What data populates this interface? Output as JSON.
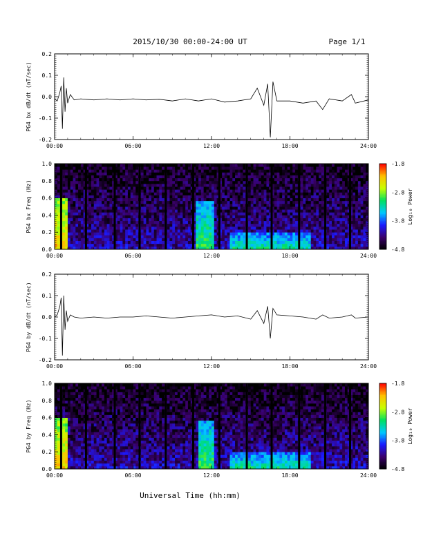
{
  "header": {
    "title": "2015/10/30  00:00-24:00 UT",
    "page": "Page 1/1"
  },
  "footer": {
    "xlabel": "Universal Time (hh:mm)"
  },
  "colorbar": {
    "label": "Log₁₀ Power",
    "ticks": [
      "-1.8",
      "-2.8",
      "-3.8",
      "-4.8"
    ],
    "range": [
      -4.8,
      -1.8
    ],
    "colormap": [
      "#000000",
      "#3a006a",
      "#1a1aff",
      "#00c8ff",
      "#00e060",
      "#c8ff00",
      "#ffc000",
      "#ff0000"
    ]
  },
  "x_ticks": [
    "00:00",
    "06:00",
    "12:00",
    "18:00",
    "24:00"
  ],
  "chart_data": [
    {
      "type": "line",
      "ylabel": "PG4 bx dB/dt (nT/sec)",
      "xlim": [
        0,
        24
      ],
      "ylim": [
        -0.2,
        0.2
      ],
      "y_ticks": [
        "0.2",
        "0.1",
        "0.0",
        "-0.1",
        "-0.2"
      ],
      "x": [
        0.0,
        0.2,
        0.4,
        0.5,
        0.6,
        0.7,
        0.8,
        0.9,
        1.0,
        1.2,
        1.5,
        2.0,
        3.0,
        4.0,
        5.0,
        6.0,
        7.0,
        8.0,
        9.0,
        10.0,
        11.0,
        12.0,
        13.0,
        14.0,
        15.0,
        15.5,
        16.0,
        16.3,
        16.5,
        16.7,
        17.0,
        18.0,
        19.0,
        20.0,
        20.5,
        21.0,
        22.0,
        22.7,
        23.0,
        24.0
      ],
      "values": [
        -0.01,
        -0.02,
        0.02,
        0.05,
        -0.15,
        0.09,
        -0.07,
        0.04,
        -0.03,
        0.01,
        -0.015,
        -0.01,
        -0.015,
        -0.01,
        -0.015,
        -0.01,
        -0.015,
        -0.012,
        -0.02,
        -0.01,
        -0.02,
        -0.01,
        -0.025,
        -0.02,
        -0.01,
        0.04,
        -0.04,
        0.06,
        -0.19,
        0.07,
        -0.02,
        -0.02,
        -0.03,
        -0.02,
        -0.06,
        -0.01,
        -0.02,
        0.01,
        -0.03,
        -0.015
      ]
    },
    {
      "type": "heatmap",
      "ylabel": "PG4 bx Freq (Hz)",
      "xlim": [
        0,
        24
      ],
      "ylim": [
        0.0,
        1.0
      ],
      "y_ticks": [
        "1.0",
        "0.8",
        "0.6",
        "0.4",
        "0.2",
        "0.0"
      ],
      "gaps_hours": [
        0.5,
        2.4,
        4.6,
        6.5,
        8.5,
        10.6,
        12.6,
        14.7,
        16.6,
        18.7,
        20.7,
        22.6
      ],
      "features": [
        {
          "t_start": 0.0,
          "t_end": 1.0,
          "f_max": 0.6,
          "log_power": -2.3
        },
        {
          "t_start": 10.9,
          "t_end": 12.2,
          "f_max": 0.55,
          "log_power": -3.0
        },
        {
          "t_start": 13.5,
          "t_end": 19.5,
          "f_max": 0.2,
          "log_power": -3.2
        }
      ],
      "background_log_power": -4.2
    },
    {
      "type": "line",
      "ylabel": "PG4 by dB/dt (nT/sec)",
      "xlim": [
        0,
        24
      ],
      "ylim": [
        -0.2,
        0.2
      ],
      "y_ticks": [
        "0.2",
        "0.1",
        "0.0",
        "-0.1",
        "-0.2"
      ],
      "x": [
        0.0,
        0.2,
        0.4,
        0.5,
        0.6,
        0.7,
        0.8,
        0.9,
        1.0,
        1.2,
        1.5,
        2.0,
        3.0,
        4.0,
        5.0,
        6.0,
        7.0,
        8.0,
        9.0,
        10.0,
        11.0,
        12.0,
        13.0,
        14.0,
        15.0,
        15.5,
        16.0,
        16.3,
        16.5,
        16.7,
        17.0,
        18.0,
        19.0,
        20.0,
        20.5,
        21.0,
        22.0,
        22.7,
        23.0,
        24.0
      ],
      "values": [
        0.0,
        0.01,
        0.05,
        0.09,
        -0.18,
        0.1,
        -0.06,
        0.03,
        -0.02,
        0.01,
        0.0,
        -0.005,
        0.0,
        -0.005,
        0.0,
        0.0,
        0.005,
        0.0,
        -0.005,
        0.0,
        0.005,
        0.01,
        0.0,
        0.005,
        -0.01,
        0.03,
        -0.03,
        0.05,
        -0.1,
        0.04,
        0.01,
        0.005,
        0.0,
        -0.01,
        0.01,
        -0.005,
        0.0,
        0.01,
        -0.005,
        0.0
      ]
    },
    {
      "type": "heatmap",
      "ylabel": "PG4 by Freq (Hz)",
      "xlim": [
        0,
        24
      ],
      "ylim": [
        0.0,
        1.0
      ],
      "y_ticks": [
        "1.0",
        "0.8",
        "0.6",
        "0.4",
        "0.2",
        "0.0"
      ],
      "gaps_hours": [
        0.5,
        2.4,
        4.6,
        6.5,
        8.5,
        10.6,
        12.6,
        14.7,
        16.6,
        18.7,
        20.7,
        22.6
      ],
      "features": [
        {
          "t_start": 0.0,
          "t_end": 1.0,
          "f_max": 0.6,
          "log_power": -2.3
        },
        {
          "t_start": 11.0,
          "t_end": 12.2,
          "f_max": 0.55,
          "log_power": -3.0
        },
        {
          "t_start": 13.5,
          "t_end": 19.5,
          "f_max": 0.2,
          "log_power": -3.2
        }
      ],
      "background_log_power": -4.2
    }
  ]
}
